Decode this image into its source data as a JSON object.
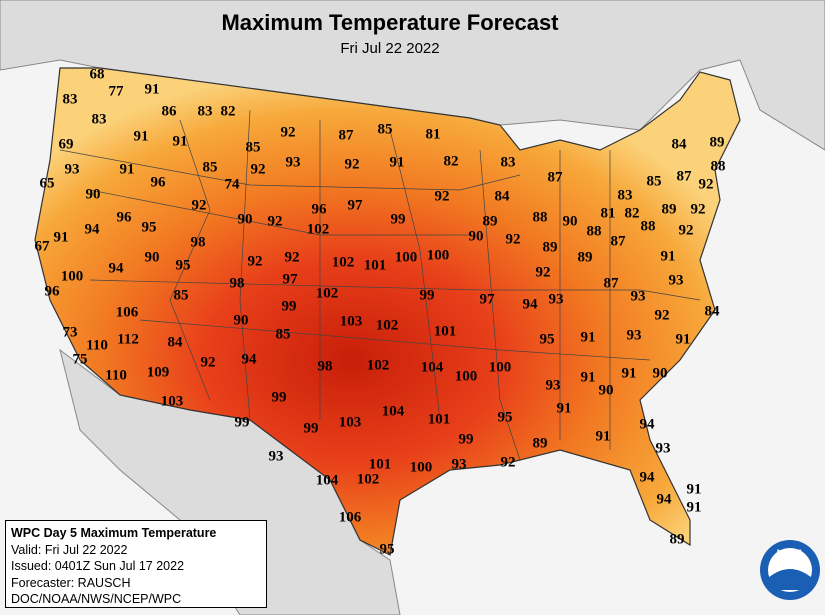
{
  "header": {
    "title": "Maximum Temperature Forecast",
    "subtitle": "Fri Jul 22 2022"
  },
  "labels": [
    68,
    77,
    91,
    83,
    83,
    86,
    83,
    82,
    91,
    91,
    92,
    87,
    85,
    81,
    69,
    85,
    93,
    91,
    85,
    92,
    93,
    92,
    91,
    82,
    83,
    84,
    89,
    65,
    96,
    74,
    87,
    85,
    87,
    88,
    92,
    90,
    92,
    92,
    84,
    83,
    96,
    95,
    90,
    92,
    96,
    97,
    99,
    89,
    88,
    90,
    81,
    82,
    89,
    92,
    91,
    94,
    67,
    98,
    102,
    90,
    92,
    89,
    88,
    87,
    88,
    92,
    90,
    92,
    92,
    102,
    101,
    100,
    100,
    89,
    91,
    100,
    94,
    95,
    97,
    98,
    92,
    87,
    93,
    96,
    85,
    102,
    99,
    97,
    94,
    93,
    93,
    106,
    99,
    90,
    92,
    84,
    73,
    112,
    85,
    103,
    102,
    101,
    95,
    91,
    93,
    91,
    110,
    84,
    75,
    98,
    102,
    104,
    100,
    100,
    93,
    91,
    90,
    91,
    90,
    110,
    109,
    92,
    94,
    103,
    99,
    104,
    91,
    95,
    99,
    99,
    103,
    101,
    99,
    91,
    94,
    93,
    89,
    93,
    101,
    100,
    93,
    92,
    104,
    102,
    94,
    106,
    91,
    94,
    91,
    95,
    89
  ],
  "info": [
    "WPC Day 5 Maximum Temperature",
    "Valid: Fri Jul 22 2022",
    "Issued: 0401Z Sun Jul 17 2022",
    "Forecaster: RAUSCH",
    "DOC/NOAA/NWS/NCEP/WPC"
  ],
  "logo": "NOAA"
}
